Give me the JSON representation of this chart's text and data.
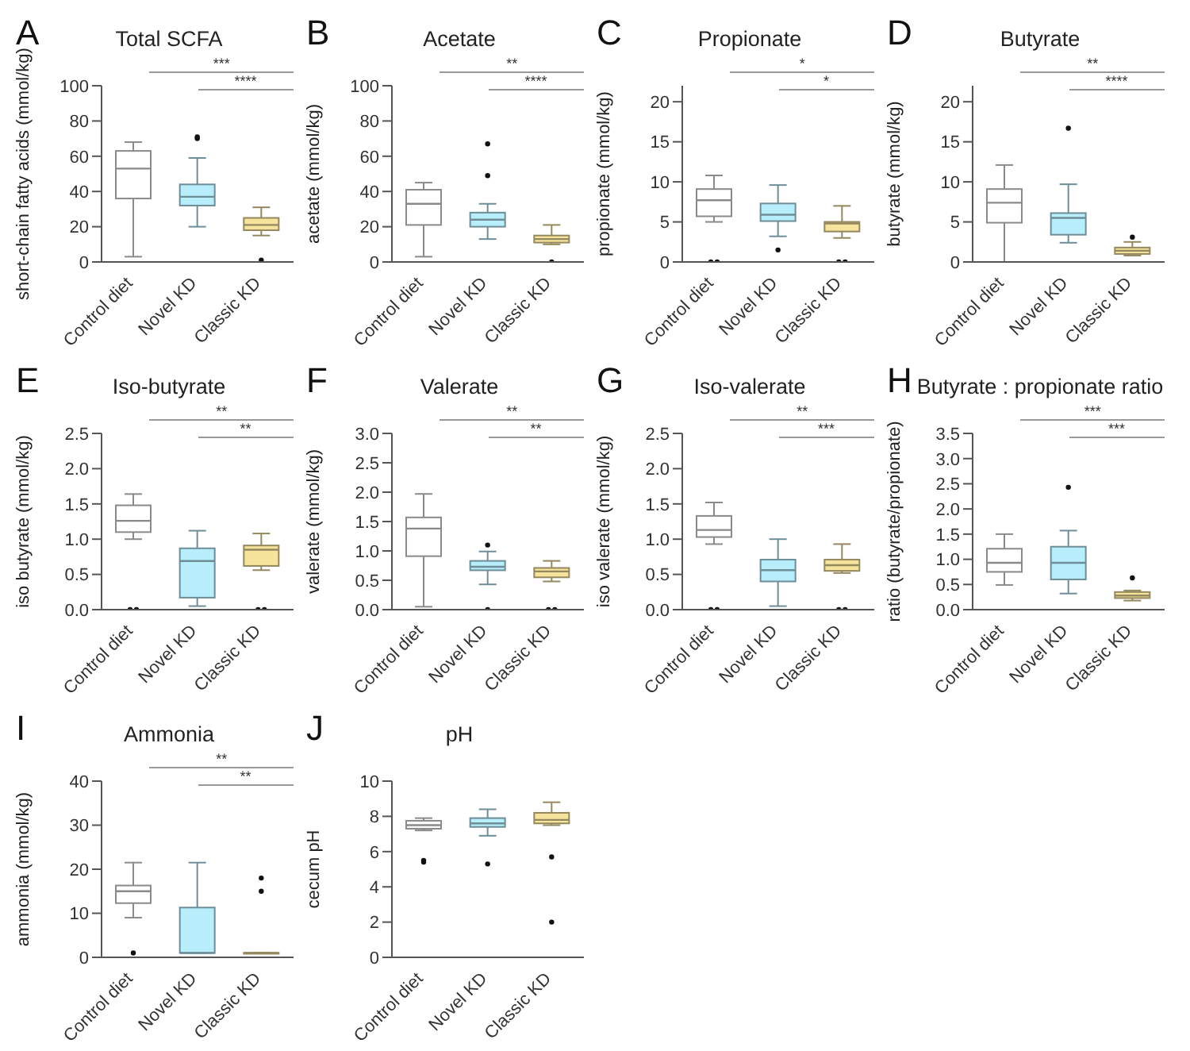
{
  "chart_data": [
    {
      "type": "box",
      "title": "Total SCFA",
      "ylabel": "short-chain fatty acids (mmol/kg)",
      "categories": [
        "Control diet",
        "Novel KD",
        "Classic KD"
      ],
      "colors": [
        "#ffffff",
        "#b8edfb",
        "#f6e39c"
      ],
      "ylim": [
        0,
        100
      ],
      "yticks": [
        0,
        20,
        40,
        60,
        80,
        100
      ],
      "annotations": [
        "A",
        "***",
        "****"
      ],
      "boxes": [
        {
          "low": 3,
          "q1": 36,
          "median": 53,
          "q3": 63,
          "high": 68
        },
        {
          "low": 20,
          "q1": 32,
          "median": 37,
          "q3": 44,
          "high": 59,
          "outliers": [
            70,
            71
          ]
        },
        {
          "low": 15,
          "q1": 18,
          "median": 21,
          "q3": 25,
          "high": 31,
          "outliers": [
            1
          ]
        }
      ]
    },
    {
      "type": "box",
      "title": "Acetate",
      "ylabel": "acetate (mmol/kg)",
      "categories": [
        "Control diet",
        "Novel KD",
        "Classic KD"
      ],
      "colors": [
        "#ffffff",
        "#b8edfb",
        "#f6e39c"
      ],
      "ylim": [
        0,
        100
      ],
      "yticks": [
        0,
        20,
        40,
        60,
        80,
        100
      ],
      "annotations": [
        "B",
        "**",
        "****"
      ],
      "boxes": [
        {
          "low": 3,
          "q1": 21,
          "median": 33,
          "q3": 41,
          "high": 45
        },
        {
          "low": 13,
          "q1": 20,
          "median": 24,
          "q3": 28,
          "high": 33,
          "outliers": [
            49,
            67
          ]
        },
        {
          "low": 10,
          "q1": 11,
          "median": 13,
          "q3": 15,
          "high": 21,
          "outliers": [
            0
          ]
        }
      ]
    },
    {
      "type": "box",
      "title": "Propionate",
      "ylabel": "propionate (mmol/kg)",
      "categories": [
        "Control diet",
        "Novel KD",
        "Classic KD"
      ],
      "colors": [
        "#ffffff",
        "#b8edfb",
        "#f6e39c"
      ],
      "ylim": [
        0,
        22
      ],
      "yticks": [
        0,
        5,
        10,
        15,
        20
      ],
      "annotations": [
        "C",
        "*",
        "*"
      ],
      "boxes": [
        {
          "low": 5,
          "q1": 5.7,
          "median": 7.7,
          "q3": 9.1,
          "high": 10.8,
          "outliers": [
            0,
            0
          ]
        },
        {
          "low": 3.2,
          "q1": 5.1,
          "median": 5.9,
          "q3": 7.3,
          "high": 9.6,
          "outliers": [
            1.5
          ]
        },
        {
          "low": 3,
          "q1": 3.8,
          "median": 4.8,
          "q3": 5,
          "high": 7,
          "outliers": [
            0,
            0
          ]
        }
      ]
    },
    {
      "type": "box",
      "title": "Butyrate",
      "ylabel": "butyrate (mmol/kg)",
      "categories": [
        "Control diet",
        "Novel KD",
        "Classic KD"
      ],
      "colors": [
        "#ffffff",
        "#b8edfb",
        "#f6e39c"
      ],
      "ylim": [
        0,
        22
      ],
      "yticks": [
        0,
        5,
        10,
        15,
        20
      ],
      "annotations": [
        "D",
        "**",
        "****"
      ],
      "boxes": [
        {
          "low": 0,
          "q1": 4.9,
          "median": 7.4,
          "q3": 9.1,
          "high": 12.1
        },
        {
          "low": 2.4,
          "q1": 3.4,
          "median": 5.5,
          "q3": 6.1,
          "high": 9.7,
          "outliers": [
            16.7
          ]
        },
        {
          "low": 0.8,
          "q1": 1,
          "median": 1.4,
          "q3": 1.8,
          "high": 2.5,
          "outliers": [
            3.1
          ]
        }
      ]
    },
    {
      "type": "box",
      "title": "Iso-butyrate",
      "ylabel": "iso butyrate (mmol/kg)",
      "categories": [
        "Control diet",
        "Novel KD",
        "Classic KD"
      ],
      "colors": [
        "#ffffff",
        "#b8edfb",
        "#f6e39c"
      ],
      "ylim": [
        0,
        2.5
      ],
      "yticks": [
        {
          "value": 0,
          "label": "0.0"
        },
        {
          "value": 0.5,
          "label": "0.5"
        },
        {
          "value": 1,
          "label": "1.0"
        },
        {
          "value": 1.5,
          "label": "1.5"
        },
        {
          "value": 2,
          "label": "2.0"
        },
        {
          "value": 2.5,
          "label": "2.5"
        }
      ],
      "annotations": [
        "E",
        "**",
        "**"
      ],
      "boxes": [
        {
          "low": 1,
          "q1": 1.1,
          "median": 1.26,
          "q3": 1.48,
          "high": 1.64,
          "outliers": [
            0,
            0
          ]
        },
        {
          "low": 0.05,
          "q1": 0.17,
          "median": 0.69,
          "q3": 0.87,
          "high": 1.12
        },
        {
          "low": 0.56,
          "q1": 0.62,
          "median": 0.85,
          "q3": 0.91,
          "high": 1.08,
          "outliers": [
            0,
            0
          ]
        }
      ]
    },
    {
      "type": "box",
      "title": "Valerate",
      "ylabel": "valerate (mmol/kg)",
      "categories": [
        "Control diet",
        "Novel KD",
        "Classic KD"
      ],
      "colors": [
        "#ffffff",
        "#b8edfb",
        "#f6e39c"
      ],
      "ylim": [
        0,
        3
      ],
      "yticks": [
        {
          "value": 0,
          "label": "0.0"
        },
        {
          "value": 0.5,
          "label": "0.5"
        },
        {
          "value": 1,
          "label": "1.0"
        },
        {
          "value": 1.5,
          "label": "1.5"
        },
        {
          "value": 2,
          "label": "2.0"
        },
        {
          "value": 2.5,
          "label": "2.5"
        },
        {
          "value": 3,
          "label": "3.0"
        }
      ],
      "annotations": [
        "F",
        "**",
        "**"
      ],
      "boxes": [
        {
          "low": 0.05,
          "q1": 0.91,
          "median": 1.38,
          "q3": 1.57,
          "high": 1.97
        },
        {
          "low": 0.43,
          "q1": 0.67,
          "median": 0.73,
          "q3": 0.83,
          "high": 0.99,
          "outliers": [
            1.1,
            0
          ]
        },
        {
          "low": 0.48,
          "q1": 0.55,
          "median": 0.65,
          "q3": 0.71,
          "high": 0.83,
          "outliers": [
            0,
            0
          ]
        }
      ]
    },
    {
      "type": "box",
      "title": "Iso-valerate",
      "ylabel": "iso valerate (mmol/kg)",
      "categories": [
        "Control diet",
        "Novel KD",
        "Classic KD"
      ],
      "colors": [
        "#ffffff",
        "#b8edfb",
        "#f6e39c"
      ],
      "ylim": [
        0,
        2.5
      ],
      "yticks": [
        {
          "value": 0,
          "label": "0.0"
        },
        {
          "value": 0.5,
          "label": "0.5"
        },
        {
          "value": 1,
          "label": "1.0"
        },
        {
          "value": 1.5,
          "label": "1.5"
        },
        {
          "value": 2,
          "label": "2.0"
        },
        {
          "value": 2.5,
          "label": "2.5"
        }
      ],
      "annotations": [
        "G",
        "**",
        "***"
      ],
      "boxes": [
        {
          "low": 0.93,
          "q1": 1.03,
          "median": 1.13,
          "q3": 1.33,
          "high": 1.52,
          "outliers": [
            0,
            0
          ]
        },
        {
          "low": 0.05,
          "q1": 0.4,
          "median": 0.56,
          "q3": 0.71,
          "high": 1
        },
        {
          "low": 0.52,
          "q1": 0.55,
          "median": 0.63,
          "q3": 0.71,
          "high": 0.93,
          "outliers": [
            0,
            0
          ]
        }
      ]
    },
    {
      "type": "box",
      "title": "Butyrate : propionate ratio",
      "ylabel": "ratio (butyrate/propionate)",
      "categories": [
        "Control diet",
        "Novel KD",
        "Classic KD"
      ],
      "colors": [
        "#ffffff",
        "#b8edfb",
        "#f6e39c"
      ],
      "ylim": [
        0,
        3.5
      ],
      "yticks": [
        {
          "value": 0,
          "label": "0.0"
        },
        {
          "value": 0.5,
          "label": "0.5"
        },
        {
          "value": 1,
          "label": "1.0"
        },
        {
          "value": 1.5,
          "label": "1.5"
        },
        {
          "value": 2,
          "label": "2.0"
        },
        {
          "value": 2.5,
          "label": "2.5"
        },
        {
          "value": 3,
          "label": "3.0"
        },
        {
          "value": 3.5,
          "label": "3.5"
        }
      ],
      "annotations": [
        "H",
        "***",
        "***"
      ],
      "boxes": [
        {
          "low": 0.49,
          "q1": 0.75,
          "median": 0.93,
          "q3": 1.21,
          "high": 1.5
        },
        {
          "low": 0.32,
          "q1": 0.6,
          "median": 0.93,
          "q3": 1.25,
          "high": 1.57,
          "outliers": [
            2.43
          ]
        },
        {
          "low": 0.18,
          "q1": 0.23,
          "median": 0.28,
          "q3": 0.35,
          "high": 0.38,
          "outliers": [
            0.63
          ]
        }
      ]
    },
    {
      "type": "box",
      "title": "Ammonia",
      "ylabel": "ammonia  (mmol/kg)",
      "categories": [
        "Control diet",
        "Novel KD",
        "Classic KD"
      ],
      "colors": [
        "#ffffff",
        "#b8edfb",
        "#f6e39c"
      ],
      "ylim": [
        0,
        40
      ],
      "yticks": [
        0,
        10,
        20,
        30,
        40
      ],
      "annotations": [
        "I",
        "**",
        "**"
      ],
      "boxes": [
        {
          "low": 9,
          "q1": 12.3,
          "median": 15,
          "q3": 16.3,
          "high": 21.5,
          "outliers": [
            1
          ]
        },
        {
          "low": 1,
          "q1": 1,
          "median": 1,
          "q3": 11.3,
          "high": 21.5
        },
        {
          "low": 1,
          "q1": 1,
          "median": 1,
          "q3": 1,
          "high": 1,
          "outliers": [
            15,
            18
          ]
        }
      ]
    },
    {
      "type": "box",
      "title": "pH",
      "ylabel": "cecum pH",
      "categories": [
        "Control diet",
        "Novel KD",
        "Classic KD"
      ],
      "colors": [
        "#ffffff",
        "#b8edfb",
        "#f6e39c"
      ],
      "ylim": [
        0,
        10
      ],
      "yticks": [
        0,
        2,
        4,
        6,
        8,
        10
      ],
      "annotations": [
        "J"
      ],
      "boxes": [
        {
          "low": 7.2,
          "q1": 7.3,
          "median": 7.5,
          "q3": 7.75,
          "high": 7.9,
          "outliers": [
            5.4,
            5.5
          ]
        },
        {
          "low": 6.9,
          "q1": 7.4,
          "median": 7.6,
          "q3": 7.9,
          "high": 8.4,
          "outliers": [
            5.3
          ]
        },
        {
          "low": 7.5,
          "q1": 7.6,
          "median": 7.8,
          "q3": 8.2,
          "high": 8.8,
          "outliers": [
            5.7,
            2
          ]
        }
      ]
    }
  ]
}
